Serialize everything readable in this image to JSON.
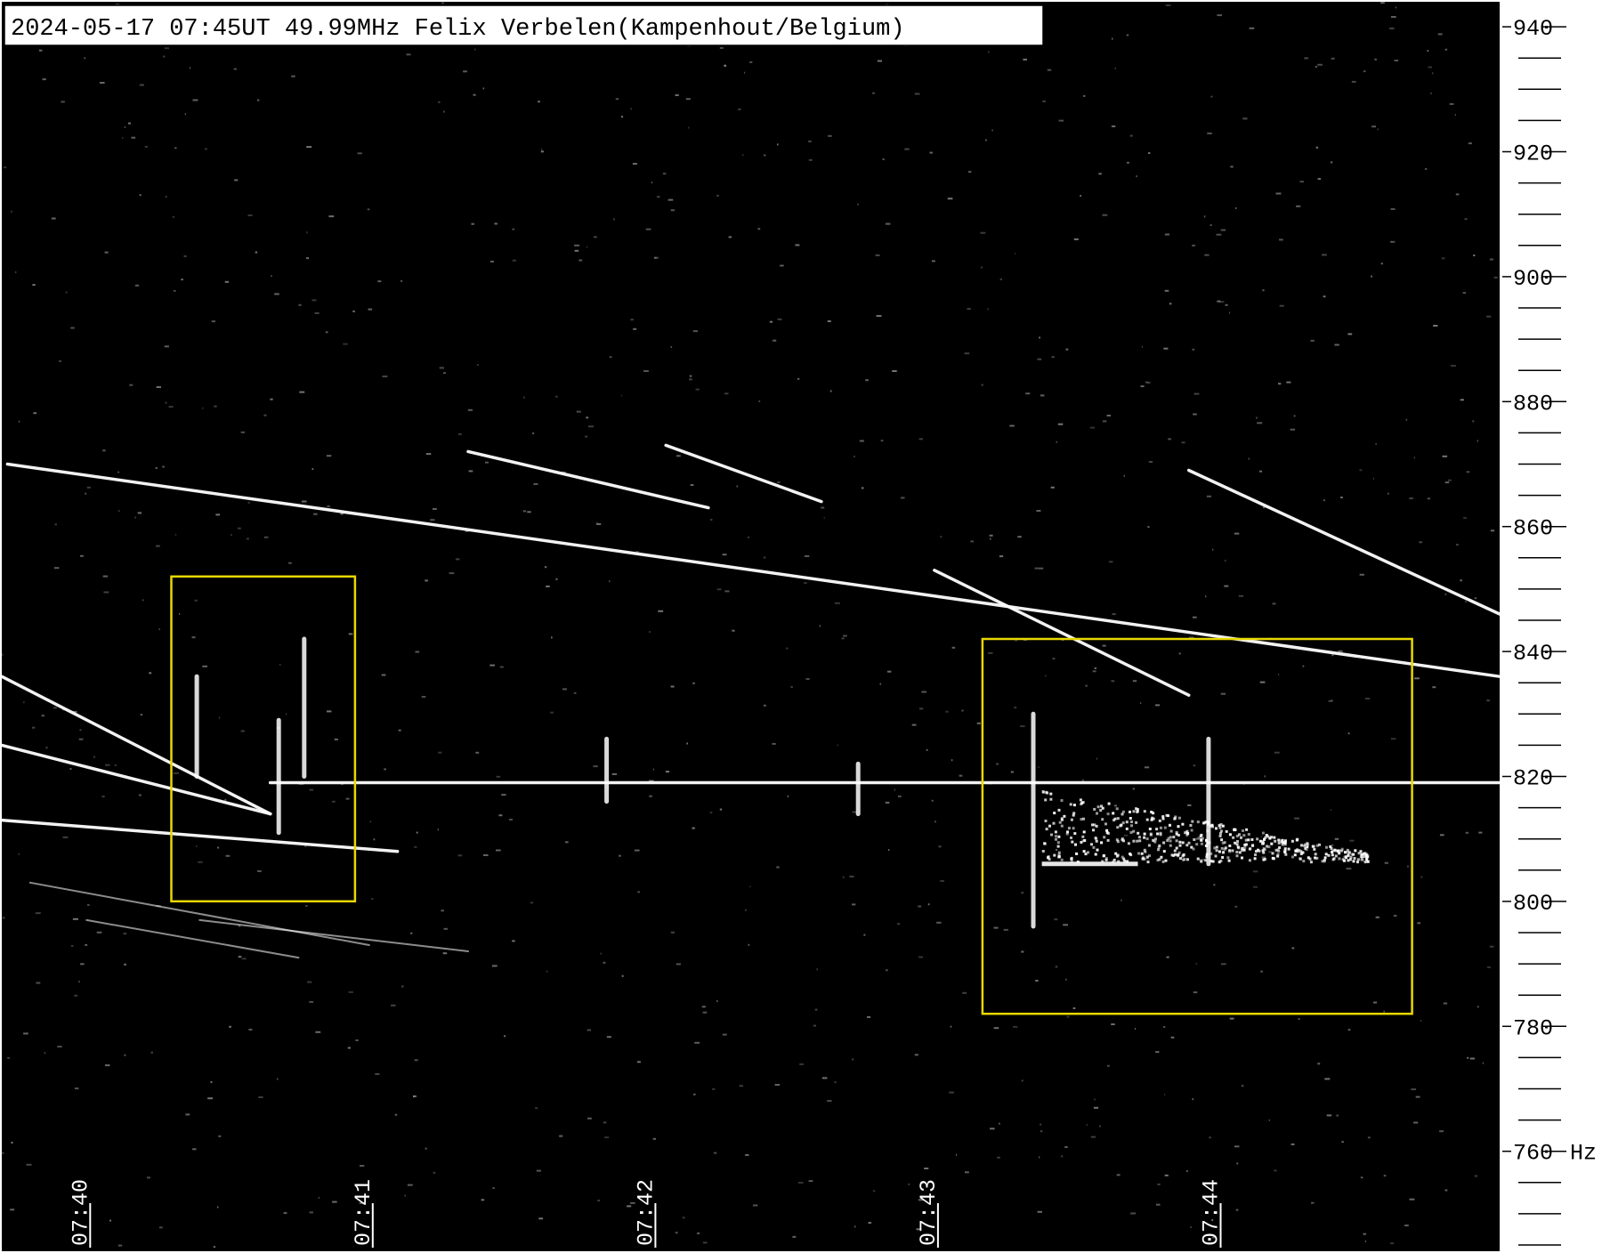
{
  "header": {
    "caption": "2024-05-17 07:45UT 49.99MHz Felix Verbelen(Kampenhout/Belgium)"
  },
  "colors": {
    "background": "#000000",
    "trace": "#ffffff",
    "highlight_box": "#e8d800",
    "scale_background": "#ffffff",
    "scale_ink": "#000000"
  },
  "chart_data": {
    "type": "spectrogram",
    "title": "2024-05-17 07:45UT 49.99MHz Felix Verbelen(Kampenhout/Belgium)",
    "x_axis": {
      "ticks": [
        "07:40",
        "07:41",
        "07:42",
        "07:43",
        "07:44"
      ],
      "range_min": [
        39.7,
        45.0
      ]
    },
    "y_axis": {
      "unit": "Hz",
      "range": [
        744,
        944
      ],
      "labelled_ticks": [
        940,
        920,
        900,
        880,
        860,
        840,
        820,
        800,
        780,
        760
      ],
      "minor_step": 5
    },
    "traces": [
      {
        "from": [
          39.72,
          870
        ],
        "to": [
          45.0,
          836
        ]
      },
      {
        "from": [
          39.7,
          836
        ],
        "to": [
          40.65,
          814
        ]
      },
      {
        "from": [
          39.7,
          825
        ],
        "to": [
          40.65,
          814
        ]
      },
      {
        "from": [
          39.7,
          813
        ],
        "to": [
          41.1,
          808
        ]
      },
      {
        "from": [
          40.65,
          819
        ],
        "to": [
          45.0,
          819
        ]
      },
      {
        "from": [
          41.35,
          872
        ],
        "to": [
          42.2,
          863
        ]
      },
      {
        "from": [
          42.05,
          873
        ],
        "to": [
          42.6,
          864
        ]
      },
      {
        "from": [
          43.0,
          853
        ],
        "to": [
          43.9,
          833
        ]
      },
      {
        "from": [
          43.9,
          869
        ],
        "to": [
          45.0,
          846
        ]
      },
      {
        "from": [
          39.8,
          803
        ],
        "to": [
          41.0,
          793
        ]
      },
      {
        "from": [
          40.0,
          797
        ],
        "to": [
          40.75,
          791
        ]
      },
      {
        "from": [
          40.4,
          797
        ],
        "to": [
          41.35,
          792
        ]
      }
    ],
    "echoes": [
      {
        "t": 40.68,
        "f_low": 811,
        "f_high": 829
      },
      {
        "t": 40.77,
        "f_low": 820,
        "f_high": 842
      },
      {
        "t": 40.39,
        "f_low": 820,
        "f_high": 836
      },
      {
        "t": 41.84,
        "f_low": 816,
        "f_high": 826
      },
      {
        "t": 42.73,
        "f_low": 814,
        "f_high": 822
      },
      {
        "t": 43.35,
        "f_low": 796,
        "f_high": 830
      },
      {
        "t": 43.97,
        "f_low": 806,
        "f_high": 826
      }
    ],
    "annotations": [
      {
        "type": "box",
        "t": [
          40.3,
          40.95
        ],
        "f": [
          852,
          800
        ]
      },
      {
        "type": "box",
        "t": [
          43.17,
          44.69
        ],
        "f": [
          842,
          782
        ]
      }
    ]
  }
}
